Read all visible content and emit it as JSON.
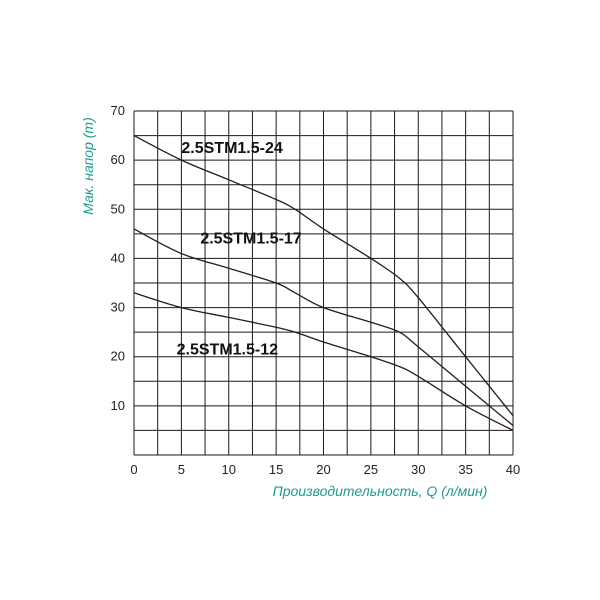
{
  "chart_data": {
    "type": "line",
    "title": "",
    "xlabel": "Производительность, Q (л/мин)",
    "ylabel": "Мак. напор (m)",
    "xlim": [
      0,
      40
    ],
    "ylim": [
      0,
      70
    ],
    "x_ticks": [
      "0",
      "5",
      "10",
      "15",
      "20",
      "25",
      "30",
      "35",
      "40"
    ],
    "y_ticks": [
      "10",
      "20",
      "30",
      "40",
      "50",
      "60",
      "70"
    ],
    "grid": true,
    "label_color": "#1f9a8e",
    "series": [
      {
        "name": "2.5STM1.5-24",
        "x": [
          0,
          5,
          10,
          15,
          17,
          20,
          25,
          28,
          30,
          35,
          40
        ],
        "y": [
          65,
          60,
          56,
          52,
          50,
          46,
          40,
          36,
          32,
          20,
          8
        ]
      },
      {
        "name": "2.5STM1.5-17",
        "x": [
          0,
          5,
          10,
          15,
          17,
          20,
          25,
          28,
          30,
          35,
          40
        ],
        "y": [
          46,
          41,
          38,
          35,
          33,
          30,
          27,
          25,
          22,
          14,
          6
        ]
      },
      {
        "name": "2.5STM1.5-12",
        "x": [
          0,
          5,
          10,
          15,
          17,
          20,
          25,
          28,
          30,
          35,
          40
        ],
        "y": [
          33,
          30,
          28,
          26,
          25,
          23,
          20,
          18,
          16,
          10,
          5
        ]
      }
    ]
  }
}
